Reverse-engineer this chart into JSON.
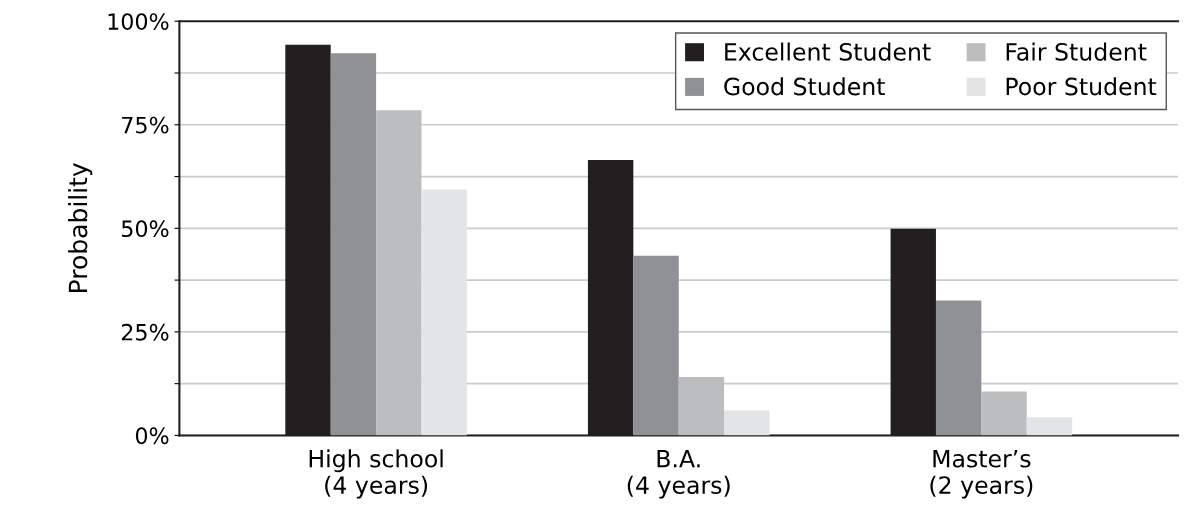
{
  "chart_data": {
    "type": "bar",
    "ylabel": "Probability",
    "categories": [
      "High school\n(4 years)",
      "B.A.\n(4 years)",
      "Master’s\n(2 years)"
    ],
    "series": [
      {
        "name": "Excellent Student",
        "color": "#231f20",
        "values": [
          94.3,
          66.5,
          49.9
        ]
      },
      {
        "name": "Good Student",
        "color": "#8f9194",
        "values": [
          92.3,
          43.4,
          32.6
        ]
      },
      {
        "name": "Fair Student",
        "color": "#bcbdbf",
        "values": [
          78.5,
          14.1,
          10.6
        ]
      },
      {
        "name": "Poor Student",
        "color": "#e3e4e5",
        "values": [
          59.4,
          6.0,
          4.4
        ]
      }
    ],
    "ylim": [
      0,
      100
    ],
    "yticks": [
      {
        "value": 0,
        "label": "0%"
      },
      {
        "value": 12.5,
        "label": null
      },
      {
        "value": 25,
        "label": "25%"
      },
      {
        "value": 37.5,
        "label": null
      },
      {
        "value": 50,
        "label": "50%"
      },
      {
        "value": 62.5,
        "label": null
      },
      {
        "value": 75,
        "label": "75%"
      },
      {
        "value": 87.5,
        "label": null
      },
      {
        "value": 100,
        "label": "100%"
      }
    ],
    "grid": "y",
    "legend": "top right"
  }
}
